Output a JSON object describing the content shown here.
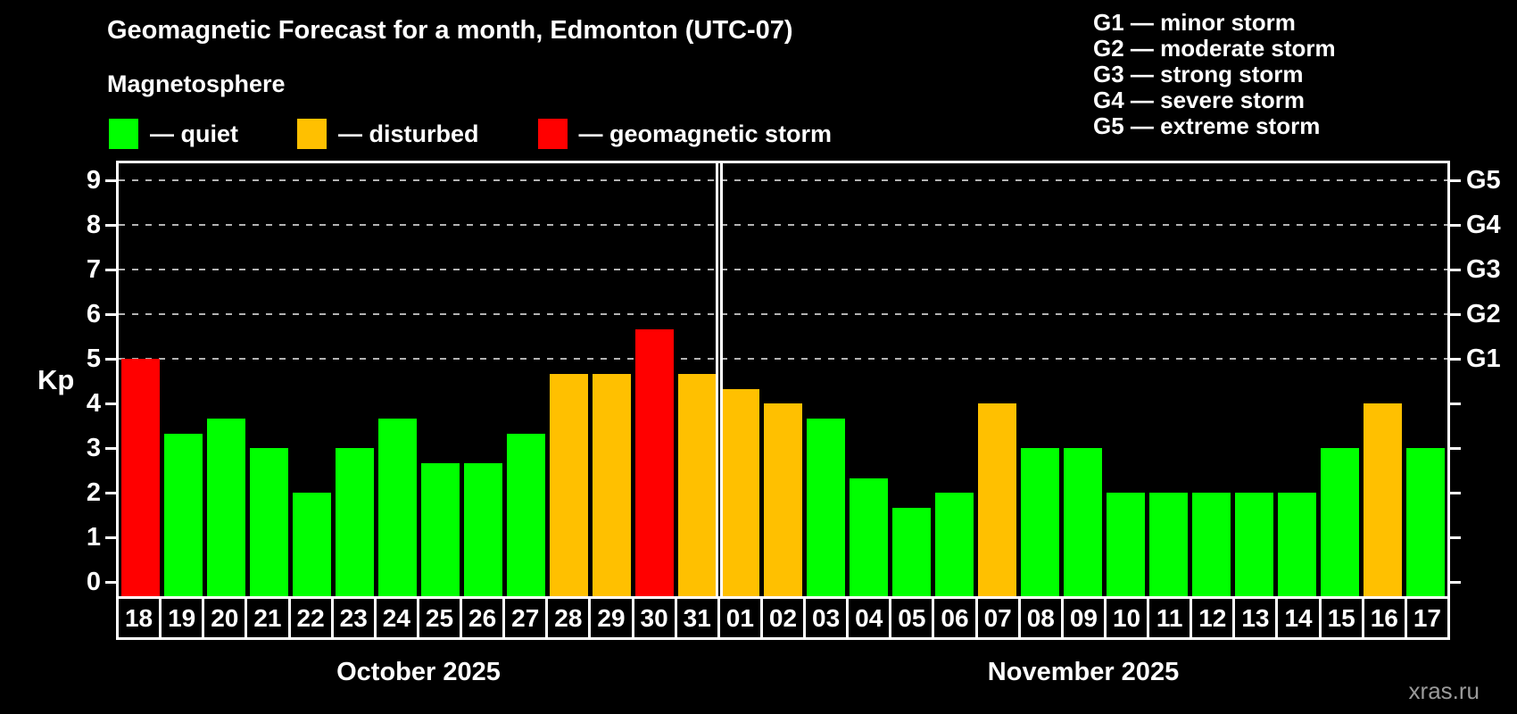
{
  "header": {
    "title": "Geomagnetic Forecast for a month, Edmonton (UTC-07)",
    "subtitle": "Magnetosphere"
  },
  "legend": {
    "items": [
      {
        "name": "quiet",
        "label": "— quiet",
        "color": "#00ff00"
      },
      {
        "name": "disturbed",
        "label": "— disturbed",
        "color": "#ffc000"
      },
      {
        "name": "storm",
        "label": "— geomagnetic storm",
        "color": "#ff0000"
      }
    ]
  },
  "storm_scale": {
    "items": [
      "G1 — minor storm",
      "G2 — moderate storm",
      "G3 — strong storm",
      "G4 — severe storm",
      "G5 — extreme storm"
    ]
  },
  "axis": {
    "ylabel": "Kp",
    "yticks": [
      0,
      1,
      2,
      3,
      4,
      5,
      6,
      7,
      8,
      9
    ],
    "right_labels": [
      {
        "value": 5,
        "label": "G1"
      },
      {
        "value": 6,
        "label": "G2"
      },
      {
        "value": 7,
        "label": "G3"
      },
      {
        "value": 8,
        "label": "G4"
      },
      {
        "value": 9,
        "label": "G5"
      }
    ]
  },
  "watermark": "xras.ru",
  "chart_data": {
    "type": "bar",
    "title": "Geomagnetic Forecast for a month, Edmonton (UTC-07)",
    "subtitle": "Magnetosphere",
    "ylabel": "Kp",
    "ylim": [
      0,
      9.7
    ],
    "yticks": [
      0,
      1,
      2,
      3,
      4,
      5,
      6,
      7,
      8,
      9
    ],
    "gridlines": [
      5,
      6,
      7,
      8,
      9
    ],
    "grid_style": "dashed horizontal lines at storm levels G1–G5 only",
    "legend_position": "top-left",
    "colors": {
      "quiet": "#00ff00",
      "disturbed": "#ffc000",
      "storm": "#ff0000"
    },
    "months": [
      {
        "label": "October 2025",
        "bars": [
          {
            "day": "18",
            "kp": 5.0,
            "condition": "storm"
          },
          {
            "day": "19",
            "kp": 3.33,
            "condition": "quiet"
          },
          {
            "day": "20",
            "kp": 3.67,
            "condition": "quiet"
          },
          {
            "day": "21",
            "kp": 3.0,
            "condition": "quiet"
          },
          {
            "day": "22",
            "kp": 2.0,
            "condition": "quiet"
          },
          {
            "day": "23",
            "kp": 3.0,
            "condition": "quiet"
          },
          {
            "day": "24",
            "kp": 3.67,
            "condition": "quiet"
          },
          {
            "day": "25",
            "kp": 2.67,
            "condition": "quiet"
          },
          {
            "day": "26",
            "kp": 2.67,
            "condition": "quiet"
          },
          {
            "day": "27",
            "kp": 3.33,
            "condition": "quiet"
          },
          {
            "day": "28",
            "kp": 4.67,
            "condition": "disturbed"
          },
          {
            "day": "29",
            "kp": 4.67,
            "condition": "disturbed"
          },
          {
            "day": "30",
            "kp": 5.67,
            "condition": "storm"
          },
          {
            "day": "31",
            "kp": 4.67,
            "condition": "disturbed"
          }
        ]
      },
      {
        "label": "November 2025",
        "bars": [
          {
            "day": "01",
            "kp": 4.33,
            "condition": "disturbed"
          },
          {
            "day": "02",
            "kp": 4.0,
            "condition": "disturbed"
          },
          {
            "day": "03",
            "kp": 3.67,
            "condition": "quiet"
          },
          {
            "day": "04",
            "kp": 2.33,
            "condition": "quiet"
          },
          {
            "day": "05",
            "kp": 1.67,
            "condition": "quiet"
          },
          {
            "day": "06",
            "kp": 2.0,
            "condition": "quiet"
          },
          {
            "day": "07",
            "kp": 4.0,
            "condition": "disturbed"
          },
          {
            "day": "08",
            "kp": 3.0,
            "condition": "quiet"
          },
          {
            "day": "09",
            "kp": 3.0,
            "condition": "quiet"
          },
          {
            "day": "10",
            "kp": 2.0,
            "condition": "quiet"
          },
          {
            "day": "11",
            "kp": 2.0,
            "condition": "quiet"
          },
          {
            "day": "12",
            "kp": 2.0,
            "condition": "quiet"
          },
          {
            "day": "13",
            "kp": 2.0,
            "condition": "quiet"
          },
          {
            "day": "14",
            "kp": 2.0,
            "condition": "quiet"
          },
          {
            "day": "15",
            "kp": 3.0,
            "condition": "quiet"
          },
          {
            "day": "16",
            "kp": 4.0,
            "condition": "disturbed"
          },
          {
            "day": "17",
            "kp": 3.0,
            "condition": "quiet"
          }
        ]
      }
    ]
  }
}
